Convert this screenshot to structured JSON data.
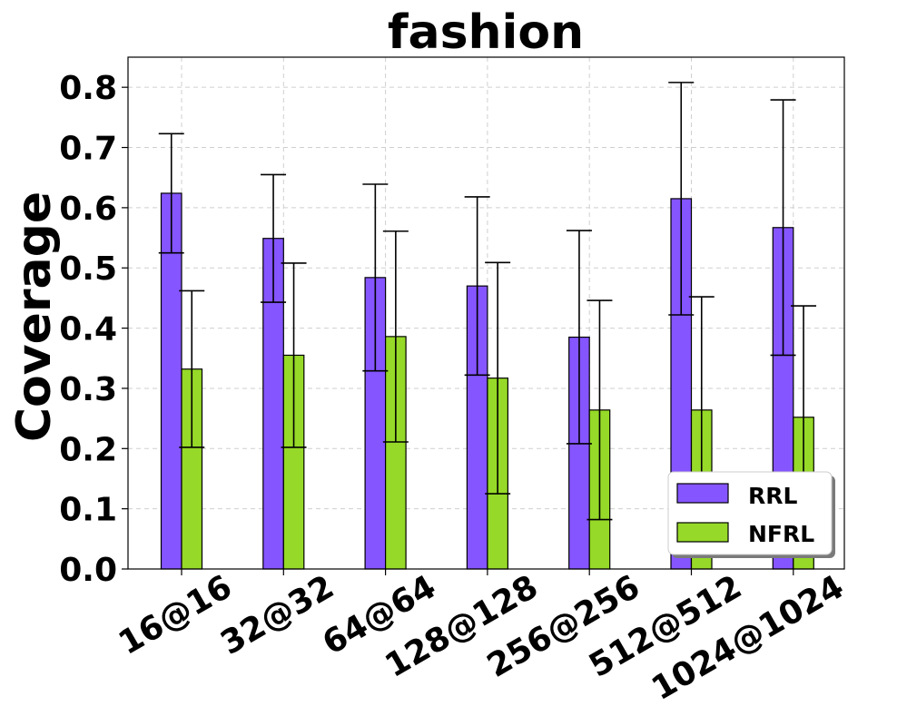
{
  "chart_data": {
    "type": "bar",
    "title": "fashion",
    "xlabel": "",
    "ylabel": "Coverage",
    "ylim": [
      0,
      0.85
    ],
    "yticks": [
      "0.0",
      "0.1",
      "0.2",
      "0.3",
      "0.4",
      "0.5",
      "0.6",
      "0.7",
      "0.8"
    ],
    "categories": [
      "16@16",
      "32@32",
      "64@64",
      "128@128",
      "256@256",
      "512@512",
      "1024@1024"
    ],
    "grid": true,
    "legend_position": "bottom-right",
    "series": [
      {
        "name": "RRL",
        "color": "#8555ff",
        "values": [
          0.624,
          0.549,
          0.484,
          0.47,
          0.385,
          0.615,
          0.567
        ],
        "error": [
          0.099,
          0.106,
          0.155,
          0.148,
          0.177,
          0.193,
          0.212
        ]
      },
      {
        "name": "NFRL",
        "color": "#96d928",
        "values": [
          0.332,
          0.355,
          0.386,
          0.317,
          0.264,
          0.264,
          0.252
        ],
        "error": [
          0.13,
          0.153,
          0.175,
          0.192,
          0.182,
          0.188,
          0.185
        ]
      }
    ]
  }
}
